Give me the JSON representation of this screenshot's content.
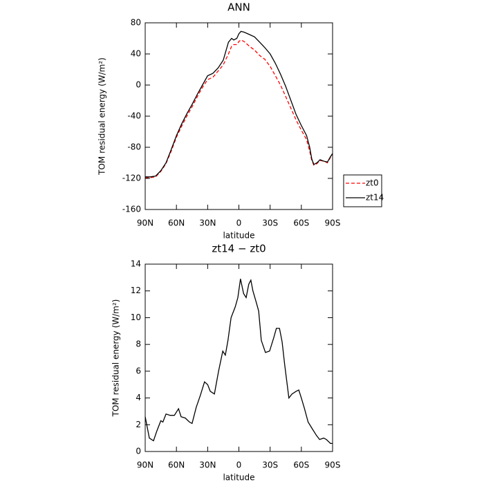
{
  "chart_data": [
    {
      "type": "line",
      "title": "ANN",
      "xlabel": "latitude",
      "ylabel": "TOM residual energy (W/m²)",
      "x": [
        90,
        85,
        80,
        75,
        70,
        65,
        60,
        55,
        50,
        45,
        40,
        35,
        30,
        25,
        20,
        15,
        10,
        7,
        5,
        2,
        0,
        -2,
        -5,
        -10,
        -15,
        -20,
        -25,
        -30,
        -35,
        -40,
        -45,
        -50,
        -55,
        -60,
        -65,
        -68,
        -70,
        -72,
        -75,
        -78,
        -82,
        -85,
        -88,
        -90
      ],
      "series": [
        {
          "name": "zt0",
          "color": "#ff0000",
          "line_style": "dashed",
          "values": [
            -119,
            -119,
            -118,
            -111,
            -101,
            -85,
            -67,
            -53,
            -40,
            -28,
            -15,
            -3,
            7,
            10,
            18,
            26,
            40,
            50,
            52,
            52,
            56,
            58,
            56,
            50,
            45,
            38,
            33,
            24,
            12,
            0,
            -15,
            -30,
            -45,
            -58,
            -70,
            -85,
            -97,
            -103,
            -101,
            -97,
            -98,
            -100,
            -93,
            -89
          ]
        },
        {
          "name": "zt14",
          "color": "#000000",
          "line_style": "solid",
          "values": [
            -118,
            -118,
            -117,
            -110,
            -100,
            -83,
            -65,
            -50,
            -37,
            -25,
            -12,
            0,
            12,
            15,
            22,
            32,
            55,
            60,
            58,
            60,
            66,
            69,
            68,
            65,
            62,
            55,
            48,
            40,
            28,
            14,
            -2,
            -20,
            -38,
            -52,
            -65,
            -80,
            -95,
            -102,
            -100,
            -96,
            -98,
            -99,
            -92,
            -88
          ]
        }
      ],
      "xlim": [
        90,
        -90
      ],
      "xticks": [
        {
          "value": 90,
          "label": "90N"
        },
        {
          "value": 60,
          "label": "60N"
        },
        {
          "value": 30,
          "label": "30N"
        },
        0,
        {
          "value": -30,
          "label": "30S"
        },
        {
          "value": -60,
          "label": "60S"
        },
        {
          "value": -90,
          "label": "90S"
        }
      ],
      "ylim": [
        -160,
        80
      ],
      "yticks": [
        -160,
        -120,
        -80,
        -40,
        0,
        40,
        80
      ],
      "legend": "right"
    },
    {
      "type": "line",
      "title": "zt14 − zt0",
      "xlabel": "latitude",
      "ylabel": "TOM residual energy (W/m²)",
      "x": [
        90,
        86,
        82,
        79,
        75,
        73,
        70,
        66,
        62,
        58,
        55.5,
        51.5,
        47.5,
        45,
        41,
        37,
        33,
        30,
        27.5,
        23.5,
        19.5,
        15.5,
        13,
        10.5,
        7.5,
        3.5,
        1,
        -1.5,
        -4.5,
        -7,
        -9.5,
        -11.5,
        -13.5,
        -16.5,
        -19,
        -21.5,
        -25.5,
        -29.5,
        -33.5,
        -36,
        -39,
        -41.5,
        -44,
        -48,
        -51,
        -55,
        -57.5,
        -60,
        -63,
        -66.5,
        -70.5,
        -74.5,
        -77.5,
        -81.5,
        -84,
        -88,
        -90
      ],
      "series": [
        {
          "color": "#000000",
          "line_style": "solid",
          "values": [
            2.6,
            1.0,
            0.8,
            1.5,
            2.3,
            2.2,
            2.8,
            2.7,
            2.7,
            3.2,
            2.6,
            2.5,
            2.2,
            2.1,
            3.3,
            4.2,
            5.2,
            5.0,
            4.5,
            4.3,
            6.0,
            7.5,
            7.2,
            8.3,
            10.0,
            10.8,
            11.5,
            12.9,
            11.8,
            11.5,
            12.5,
            12.8,
            12.0,
            11.2,
            10.5,
            8.3,
            7.4,
            7.5,
            8.5,
            9.2,
            9.2,
            8.2,
            6.5,
            4.0,
            4.3,
            4.5,
            4.6,
            4.0,
            3.2,
            2.2,
            1.7,
            1.2,
            0.9,
            1.0,
            0.9,
            0.6,
            0.6
          ]
        }
      ],
      "xlim": [
        90,
        -90
      ],
      "xticks": [
        {
          "value": 90,
          "label": "90N"
        },
        {
          "value": 60,
          "label": "60N"
        },
        {
          "value": 30,
          "label": "30N"
        },
        0,
        {
          "value": -30,
          "label": "30S"
        },
        {
          "value": -60,
          "label": "60S"
        },
        {
          "value": -90,
          "label": "90S"
        }
      ],
      "ylim": [
        0,
        14
      ],
      "yticks": [
        0,
        2,
        4,
        6,
        8,
        10,
        12,
        14
      ]
    }
  ]
}
